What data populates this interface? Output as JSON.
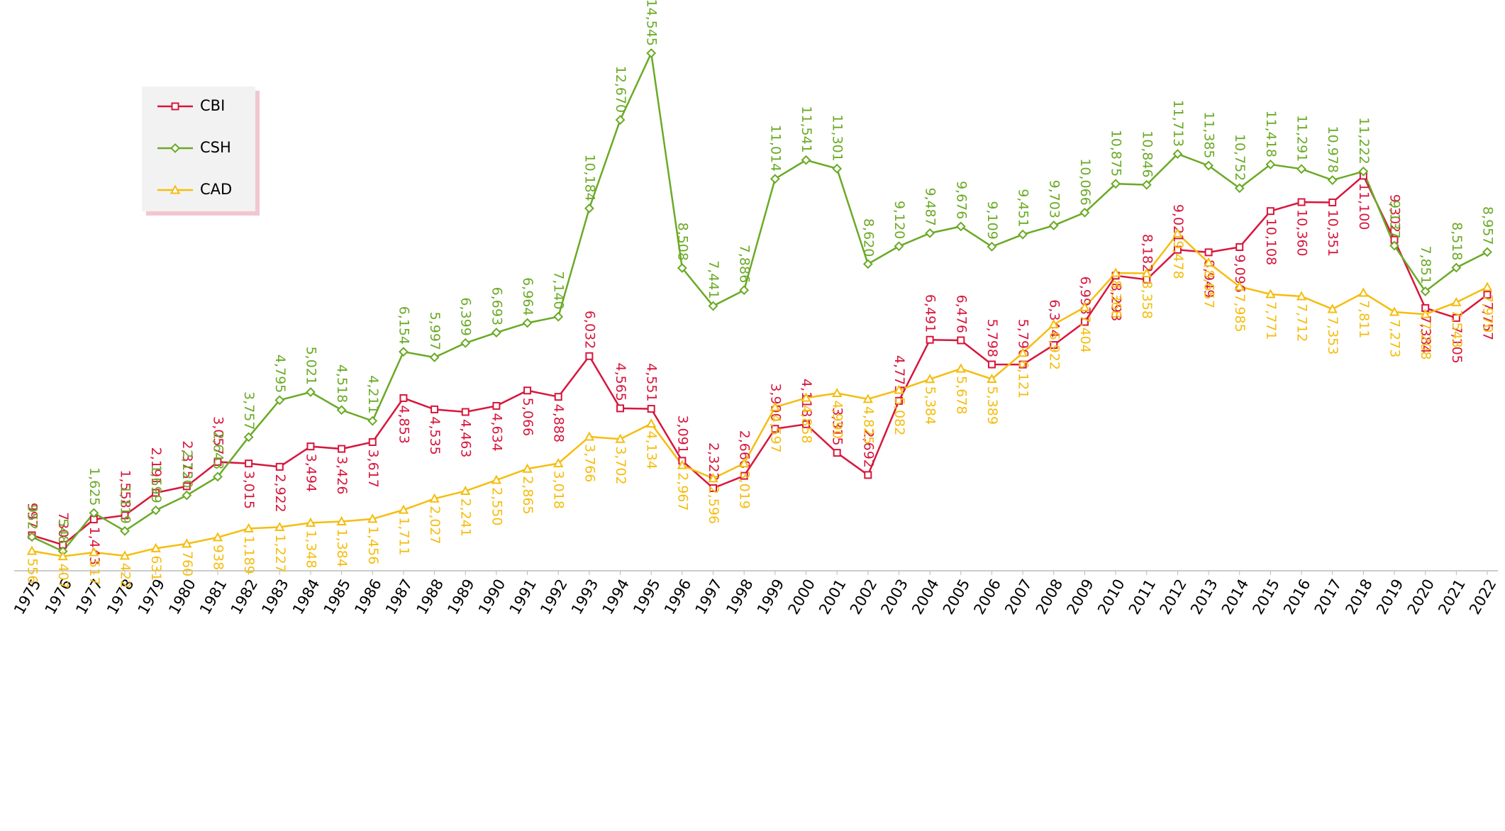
{
  "chart_data": {
    "type": "line",
    "categories": [
      "1975",
      "1976",
      "1977",
      "1978",
      "1979",
      "1980",
      "1981",
      "1982",
      "1983",
      "1984",
      "1985",
      "1986",
      "1987",
      "1988",
      "1989",
      "1990",
      "1991",
      "1992",
      "1993",
      "1994",
      "1995",
      "1996",
      "1997",
      "1998",
      "1999",
      "2000",
      "2001",
      "2002",
      "2003",
      "2004",
      "2005",
      "2006",
      "2007",
      "2008",
      "2009",
      "2010",
      "2011",
      "2012",
      "2013",
      "2014",
      "2015",
      "2016",
      "2017",
      "2018",
      "2019",
      "2020",
      "2021",
      "2022"
    ],
    "legend": "upper left",
    "series": [
      {
        "name": "CBI",
        "color": "#d7163c",
        "marker": "square",
        "values": [
          997,
          730,
          1443,
          1558,
          2191,
          2375,
          3057,
          3015,
          2922,
          3494,
          3426,
          3617,
          4853,
          4535,
          4463,
          4634,
          5066,
          4888,
          6032,
          4565,
          4551,
          3091,
          2322,
          2668,
          3990,
          4118,
          3315,
          2692,
          4775,
          6491,
          6476,
          5798,
          5796,
          6344,
          6993,
          8293,
          8182,
          9021,
          8949,
          9096,
          10108,
          10360,
          10351,
          11100,
          9302,
          7384,
          7105,
          7757
        ],
        "value_labels": [
          "997",
          "730",
          "1,443",
          "1,558",
          "2,191",
          "2,375",
          "3,057",
          "3,015",
          "2,922",
          "3,494",
          "3,426",
          "3,617",
          "4,853",
          "4,535",
          "4,463",
          "4,634",
          "5,066",
          "4,888",
          "6,032",
          "4,565",
          "4,551",
          "3,091",
          "2,322",
          "2,668",
          "3,990",
          "4,118",
          "3,315",
          "2,692",
          "4,775",
          "6,491",
          "6,476",
          "5,798",
          "5,796",
          "6,344",
          "6,993",
          "8,293",
          "8,182",
          "9,021",
          "8,949",
          "9,096",
          "10,108",
          "10,360",
          "10,351",
          "11,100",
          "9,302",
          "7,384",
          "7,105",
          "7,757"
        ]
      },
      {
        "name": "CSH",
        "color": "#6aaa26",
        "marker": "diamond",
        "values": [
          952,
          548,
          1625,
          1119,
          1699,
          2120,
          2643,
          3757,
          4795,
          5021,
          4518,
          4211,
          6154,
          5997,
          6399,
          6693,
          6964,
          7140,
          10184,
          12670,
          14545,
          8508,
          7441,
          7886,
          11014,
          11541,
          11301,
          8620,
          9120,
          9487,
          9676,
          9109,
          9451,
          9703,
          10066,
          10875,
          10846,
          11713,
          11385,
          10752,
          11418,
          11291,
          10978,
          11222,
          9137,
          7851,
          8518,
          8957
        ],
        "value_labels": [
          "952",
          "548",
          "1,625",
          "1,119",
          "1,699",
          "2,120",
          "2,643",
          "3,757",
          "4,795",
          "5,021",
          "4,518",
          "4,211",
          "6,154",
          "5,997",
          "6,399",
          "6,693",
          "6,964",
          "7,140",
          "10,184",
          "12,670",
          "14,545",
          "8,508",
          "7,441",
          "7,886",
          "11,014",
          "11,541",
          "11,301",
          "8,620",
          "9,120",
          "9,487",
          "9,676",
          "9,109",
          "9,451",
          "9,703",
          "10,066",
          "10,875",
          "10,846",
          "11,713",
          "11,385",
          "10,752",
          "11,418",
          "11,291",
          "10,978",
          "11,222",
          "9,137",
          "7,851",
          "8,518",
          "8,957"
        ]
      },
      {
        "name": "CAD",
        "color": "#f5bd0f",
        "marker": "triangle",
        "values": [
          556,
          407,
          517,
          422,
          631,
          760,
          938,
          1189,
          1227,
          1348,
          1384,
          1456,
          1711,
          2027,
          2241,
          2550,
          2865,
          3018,
          3766,
          3702,
          4134,
          2967,
          2596,
          3019,
          4597,
          4858,
          4990,
          4825,
          5082,
          5384,
          5678,
          5389,
          6121,
          6922,
          7404,
          8368,
          8358,
          9478,
          8657,
          7985,
          7771,
          7712,
          7353,
          7811,
          7273,
          7208,
          7543,
          7970
        ],
        "value_labels": [
          "556",
          "407",
          "517",
          "422",
          "631",
          "760",
          "938",
          "1,189",
          "1,227",
          "1,348",
          "1,384",
          "1,456",
          "1,711",
          "2,027",
          "2,241",
          "2,550",
          "2,865",
          "3,018",
          "3,766",
          "3,702",
          "4,134",
          "2,967",
          "2,596",
          "3,019",
          "4,597",
          "4,858",
          "4,990",
          "4,825",
          "5,082",
          "5,384",
          "5,678",
          "5,389",
          "6,121",
          "6,922",
          "7,404",
          "8,368",
          "8,358",
          "9,478",
          "8,657",
          "7,985",
          "7,771",
          "7,712",
          "7,353",
          "7,811",
          "7,273",
          "7,208",
          "7,543",
          "7,970"
        ]
      }
    ]
  }
}
